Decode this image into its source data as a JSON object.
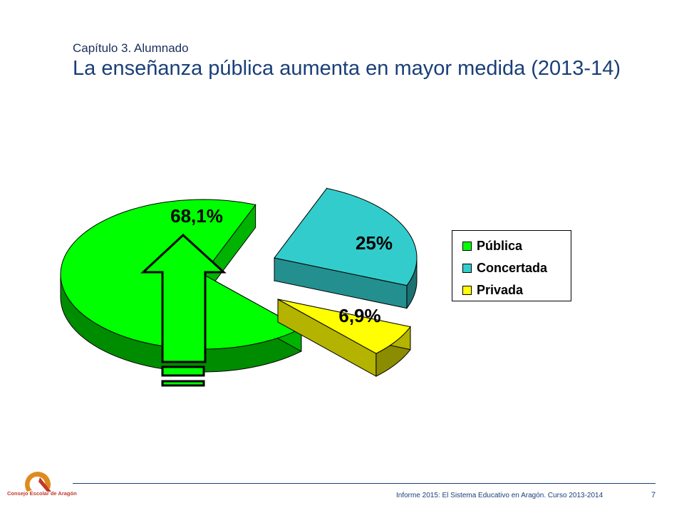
{
  "header": {
    "subtitle": "Capítulo 3. Alumnado",
    "title": "La enseñanza pública aumenta en mayor medida (2013-14)"
  },
  "chart_data": {
    "type": "pie",
    "categories": [
      "Pública",
      "Concertada",
      "Privada"
    ],
    "values": [
      68.1,
      25,
      6.9
    ],
    "data_labels": [
      "68,1%",
      "25%",
      "6,9%"
    ],
    "colors": [
      "#00ff00",
      "#33cccc",
      "#ffff00"
    ],
    "legend_position": "right",
    "three_d": true,
    "exploded": true,
    "annotation": "up-arrow over Pública slice with equals sign"
  },
  "footer": {
    "text": "Informe 2015: El Sistema Educativo en Aragón. Curso 2013-2014",
    "page": "7",
    "logo_text": "Consejo Escolar de Aragón"
  }
}
